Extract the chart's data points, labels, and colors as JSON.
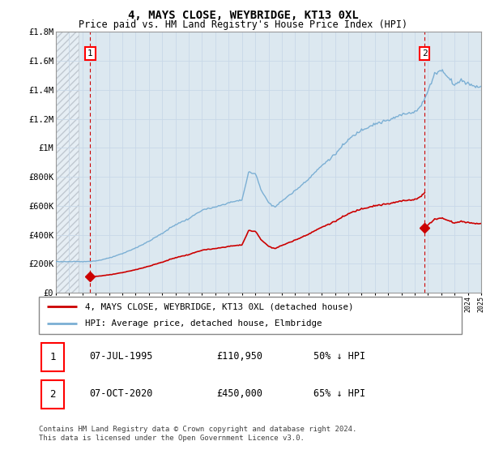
{
  "title": "4, MAYS CLOSE, WEYBRIDGE, KT13 0XL",
  "subtitle": "Price paid vs. HM Land Registry's House Price Index (HPI)",
  "ylim": [
    0,
    1800000
  ],
  "yticks": [
    0,
    200000,
    400000,
    600000,
    800000,
    1000000,
    1200000,
    1400000,
    1600000,
    1800000
  ],
  "ytick_labels": [
    "£0",
    "£200K",
    "£400K",
    "£600K",
    "£800K",
    "£1M",
    "£1.2M",
    "£1.4M",
    "£1.6M",
    "£1.8M"
  ],
  "hpi_color": "#7bafd4",
  "price_color": "#cc0000",
  "purchase1_year": 1995.583,
  "purchase1_price": 110950,
  "purchase2_year": 2020.75,
  "purchase2_price": 450000,
  "purchase1_date": "07-JUL-1995",
  "purchase1_price_str": "£110,950",
  "purchase1_hpi": "50% ↓ HPI",
  "purchase2_date": "07-OCT-2020",
  "purchase2_price_str": "£450,000",
  "purchase2_hpi": "65% ↓ HPI",
  "legend_label1": "4, MAYS CLOSE, WEYBRIDGE, KT13 0XL (detached house)",
  "legend_label2": "HPI: Average price, detached house, Elmbridge",
  "footer": "Contains HM Land Registry data © Crown copyright and database right 2024.\nThis data is licensed under the Open Government Licence v3.0.",
  "grid_color": "#c8d8e8",
  "plot_bg": "#dce8f0",
  "hatch_color": "#c0c8d0",
  "x_start_year": 1993,
  "x_end_year": 2025,
  "label1": "1",
  "label2": "2"
}
